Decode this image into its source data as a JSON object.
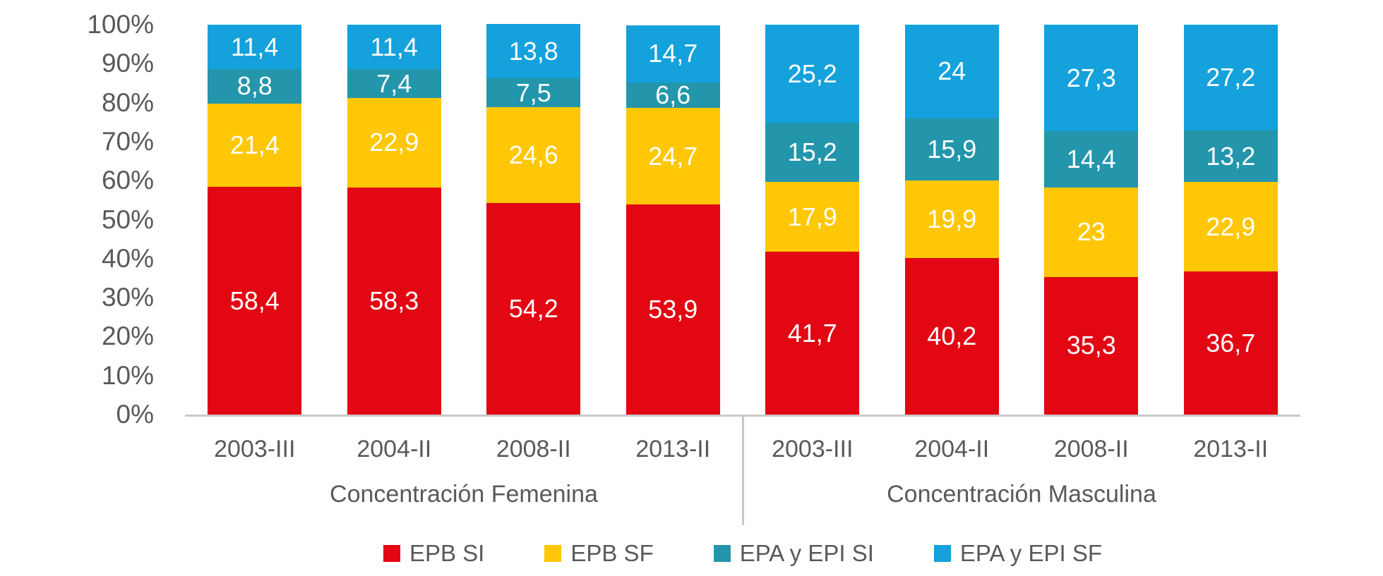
{
  "colors": {
    "epb_si": "#E30613",
    "epb_sf": "#FFC705",
    "epa_epi_si": "#2396AC",
    "epa_epi_sf": "#14A1DC",
    "axis_line": "#C9C9C9",
    "text": "#595959",
    "data_label": "#FFFFFF"
  },
  "chart_data": {
    "type": "bar",
    "stacked": true,
    "percent_stacked": true,
    "title": "",
    "xlabel": "",
    "ylabel": "",
    "ylim": [
      0,
      100
    ],
    "grid": false,
    "legend_position": "bottom",
    "y_ticks": [
      "100%",
      "90%",
      "80%",
      "70%",
      "60%",
      "50%",
      "40%",
      "30%",
      "20%",
      "10%",
      "0%"
    ],
    "series_names": [
      "EPB SI",
      "EPB SF",
      "EPA y EPI SI",
      "EPA y EPI SF"
    ],
    "series_colors": [
      "#E30613",
      "#FFC705",
      "#2396AC",
      "#14A1DC"
    ],
    "groups": [
      {
        "label": "Concentración Femenina",
        "categories": [
          "2003-III",
          "2004-II",
          "2008-II",
          "2013-II"
        ],
        "series": [
          {
            "name": "EPB SI",
            "values": [
              58.4,
              58.3,
              54.2,
              53.9
            ],
            "labels": [
              "58,4",
              "58,3",
              "54,2",
              "53,9"
            ]
          },
          {
            "name": "EPB SF",
            "values": [
              21.4,
              22.9,
              24.6,
              24.7
            ],
            "labels": [
              "21,4",
              "22,9",
              "24,6",
              "24,7"
            ]
          },
          {
            "name": "EPA y EPI SI",
            "values": [
              8.8,
              7.4,
              7.5,
              6.6
            ],
            "labels": [
              "8,8",
              "7,4",
              "7,5",
              "6,6"
            ]
          },
          {
            "name": "EPA y EPI SF",
            "values": [
              11.4,
              11.4,
              13.8,
              14.7
            ],
            "labels": [
              "11,4",
              "11,4",
              "13,8",
              "14,7"
            ]
          }
        ]
      },
      {
        "label": "Concentración Masculina",
        "categories": [
          "2003-III",
          "2004-II",
          "2008-II",
          "2013-II"
        ],
        "series": [
          {
            "name": "EPB SI",
            "values": [
              41.7,
              40.2,
              35.3,
              36.7
            ],
            "labels": [
              "41,7",
              "40,2",
              "35,3",
              "36,7"
            ]
          },
          {
            "name": "EPB SF",
            "values": [
              17.9,
              19.9,
              23,
              22.9
            ],
            "labels": [
              "17,9",
              "19,9",
              "23",
              "22,9"
            ]
          },
          {
            "name": "EPA y EPI SI",
            "values": [
              15.2,
              15.9,
              14.4,
              13.2
            ],
            "labels": [
              "15,2",
              "15,9",
              "14,4",
              "13,2"
            ]
          },
          {
            "name": "EPA y EPI SF",
            "values": [
              25.2,
              24,
              27.3,
              27.2
            ],
            "labels": [
              "25,2",
              "24",
              "27,3",
              "27,2"
            ]
          }
        ]
      }
    ],
    "legend": [
      {
        "label": "EPB SI",
        "color": "#E30613"
      },
      {
        "label": "EPB SF",
        "color": "#FFC705"
      },
      {
        "label": "EPA y EPI SI",
        "color": "#2396AC"
      },
      {
        "label": "EPA y EPI SF",
        "color": "#14A1DC"
      }
    ]
  }
}
